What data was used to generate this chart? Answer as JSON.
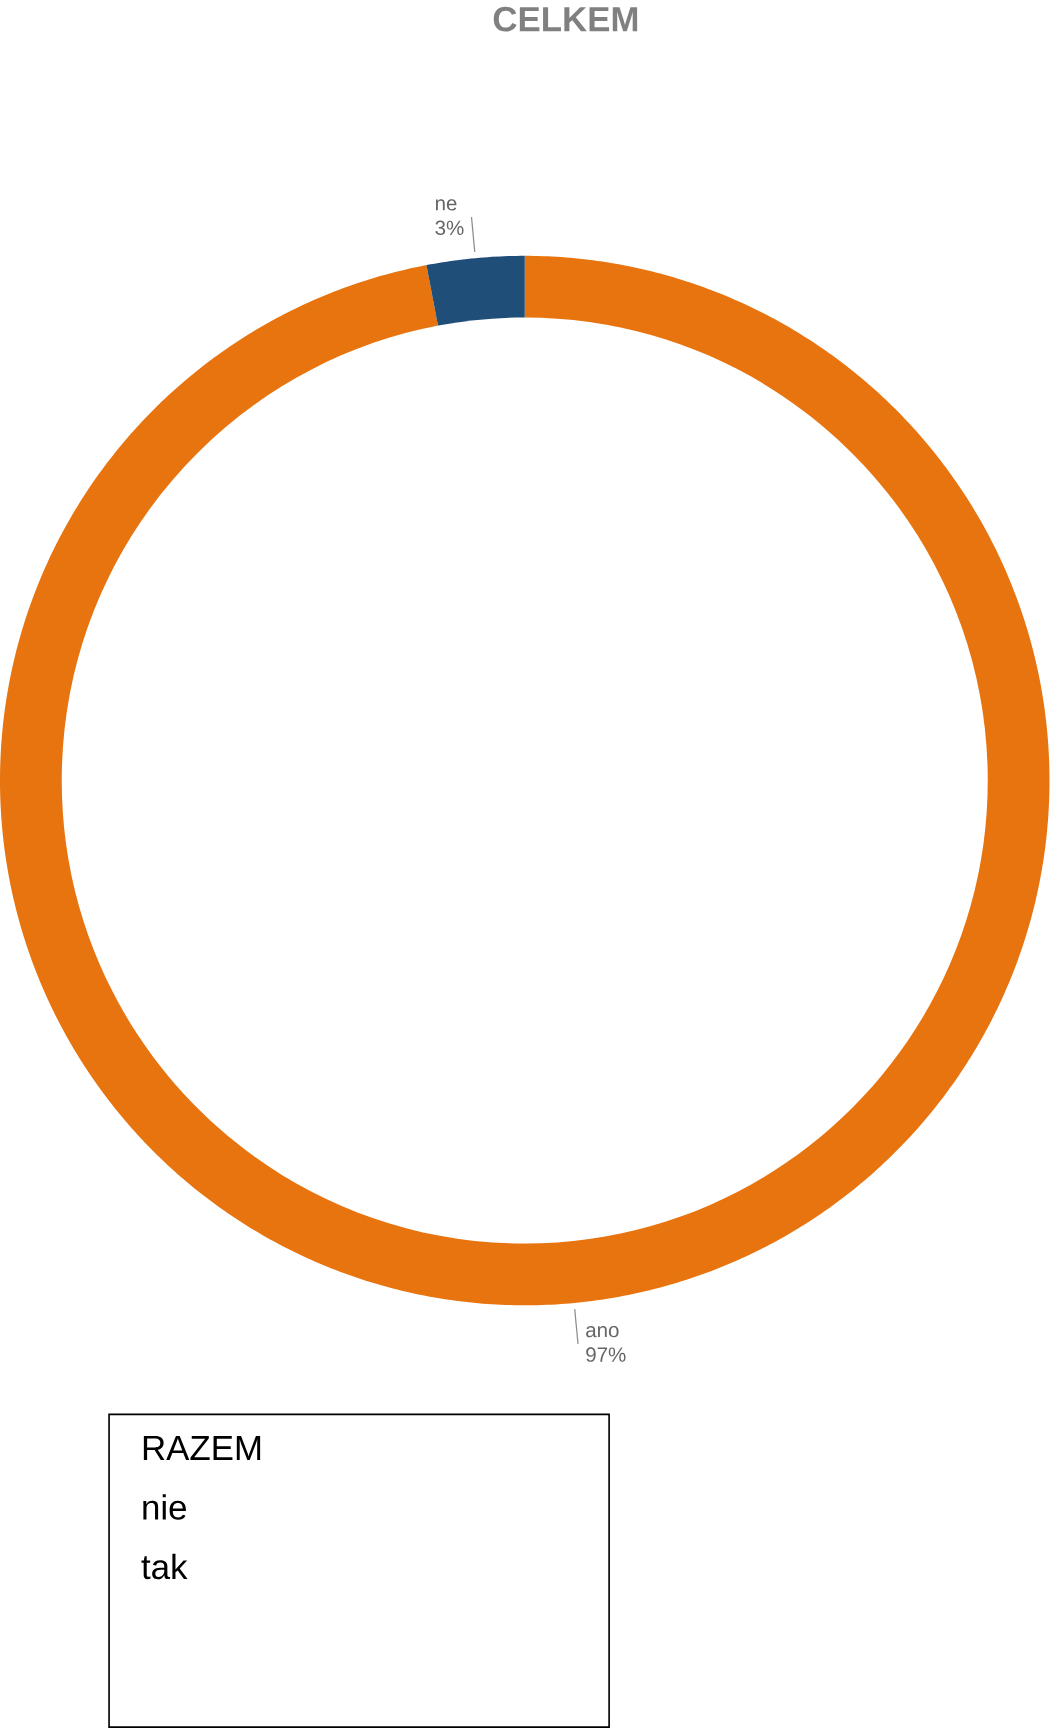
{
  "chart_data": {
    "type": "donut",
    "title": "CELKEM",
    "categories": [
      "ano",
      "ne"
    ],
    "values": [
      97,
      3
    ],
    "colors": [
      "#e8740f",
      "#1f4e79"
    ],
    "value_labels": [
      "97%",
      "3%"
    ],
    "annotations": [
      "RAZEM",
      "nie",
      "tak"
    ]
  }
}
